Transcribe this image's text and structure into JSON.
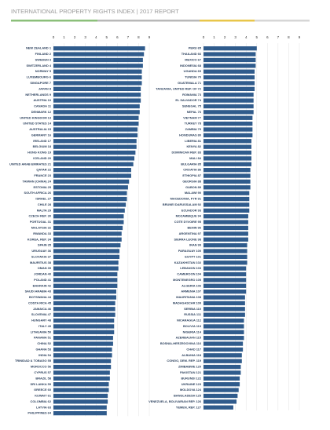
{
  "header": {
    "title": "INTERNATIONAL PROPERTY RIGHTS INDEX | 2017 REPORT"
  },
  "chart_data": [
    {
      "type": "hbar",
      "color": "#2f5b8c",
      "xlim": [
        0,
        9
      ],
      "xticks": [
        0,
        1,
        2,
        3,
        4,
        5,
        6,
        7,
        8,
        9
      ],
      "grid": true,
      "categories": [
        "NEW ZEALAND 1",
        "FINLAND 2",
        "SWEDEN 3",
        "SWITZERLAND 4",
        "NORWAY 5",
        "LUXEMBOURG 6",
        "SINGAPORE 7",
        "JAPAN 8",
        "NETHERLANDS 9",
        "AUSTRIA 10",
        "CANADA 11",
        "DENMARK 12",
        "UNITED KINGDOM 13",
        "UNITED STATES 14",
        "AUSTRALIA 15",
        "GERMANY 16",
        "IRELAND 17",
        "BELGIUM 18",
        "HONG KONG 19",
        "ICELAND 20",
        "UNITED ARAB EMIRATES 21",
        "QATAR 22",
        "FRANCE 23",
        "TAIWAN (CHINA) 24",
        "ESTONIA 25",
        "SOUTH AFRICA 26",
        "ISRAEL 27",
        "CHILE 28",
        "MALTA 29",
        "CZECH REP. 30",
        "PORTUGAL 31",
        "MALAYSIA 32",
        "RWANDA 33",
        "KOREA, REP. 34",
        "SPAIN 35",
        "URUGUAY 36",
        "SLOVAKIA 37",
        "MAURITIUS 38",
        "OMAN 39",
        "JORDAN 40",
        "POLAND 41",
        "BAHRAIN 42",
        "SAUDI ARABIA 43",
        "BOTSWANA 44",
        "COSTA RICA 45",
        "JAMAICA 46",
        "SLOVENIA 47",
        "HUNGARY 48",
        "ITALY 49",
        "LITHUANIA 50",
        "PANAMA 51",
        "CHINA 52",
        "GHANA 53",
        "INDIA 54",
        "TRINIDAD & TOBAGO 55",
        "MOROCCO 56",
        "CYPRUS 57",
        "BRAZIL 58",
        "SRI LANKA 59",
        "GREECE 60",
        "KUWAIT 61",
        "COLOMBIA 62",
        "LATVIA 63",
        "PHILIPPINES 64"
      ],
      "values": [
        8.6,
        8.5,
        8.4,
        8.4,
        8.3,
        8.3,
        8.3,
        8.2,
        8.2,
        8.2,
        8.1,
        8.1,
        8.0,
        8.0,
        7.9,
        7.9,
        7.8,
        7.8,
        7.7,
        7.6,
        7.5,
        7.3,
        7.3,
        7.1,
        7.0,
        6.9,
        6.9,
        6.8,
        6.7,
        6.6,
        6.6,
        6.5,
        6.4,
        6.4,
        6.3,
        6.2,
        6.2,
        6.1,
        6.1,
        6.0,
        6.0,
        6.0,
        5.9,
        5.9,
        5.8,
        5.8,
        5.8,
        5.7,
        5.7,
        5.7,
        5.6,
        5.6,
        5.5,
        5.5,
        5.4,
        5.4,
        5.3,
        5.3,
        5.2,
        5.2,
        5.1,
        5.1,
        5.0,
        5.0
      ]
    },
    {
      "type": "hbar",
      "color": "#2f5b8c",
      "xlim": [
        0,
        9
      ],
      "xticks": [
        0,
        1,
        2,
        3,
        4,
        5,
        6,
        7,
        8,
        9
      ],
      "grid": true,
      "categories": [
        "PERU 65",
        "THAILAND 66",
        "MEXICO 67",
        "INDONESIA 68",
        "UGANDA 69",
        "TUNISIA 70",
        "GUATEMALA 71",
        "TANZANIA, UNITED REP. OF 72",
        "ROMANIA 73",
        "EL SALVADOR 74",
        "SENEGAL 75",
        "NEPAL 76",
        "VIETNAM 77",
        "TURKEY 78",
        "ZAMBIA 79",
        "HONDURAS 80",
        "LIBERIA 81",
        "KENYA 82",
        "DOMINICAN REP. 83",
        "MALI 84",
        "BULGARIA 85",
        "CROATIA 86",
        "ETHIOPIA 87",
        "GEORGIA 88",
        "GABON 89",
        "MALAWI 90",
        "MACEDONIA, FYR 91",
        "BRUNEI DARUSSALAM 92",
        "ECUADOR 93",
        "MOZAMBIQUE 94",
        "COTE D'IVOIRE 95",
        "BENIN 96",
        "ARGENTINA 97",
        "SIERRA LEONE 98",
        "IRAN 99",
        "PARAGUAY 100",
        "EGYPT 101",
        "KAZAKHSTAN 102",
        "LEBANON 103",
        "CAMEROON 104",
        "MONTENEGRO 105",
        "ALGERIA 106",
        "ARMENIA 107",
        "MAURITANIA 108",
        "MADAGASCAR 109",
        "SERBIA 110",
        "RUSSIA 111",
        "NICARAGUA 112",
        "BOLIVIA 113",
        "NIGERIA 114",
        "AZERBAIJAN 115",
        "BOSNIA-HERZEGOVINA 116",
        "CHAD 117",
        "ALBANIA 118",
        "CONGO, DEM. REP. 119",
        "ZIMBABWE 120",
        "PAKISTAN 121",
        "BURUNDI 122",
        "UKRAINE 123",
        "MOLDOVA 124",
        "BANGLADESH 125",
        "VENEZUELA, BOLIVARIAN REP. 126",
        "YEMEN, REP. 127"
      ],
      "values": [
        5.0,
        4.9,
        4.9,
        4.9,
        4.8,
        4.8,
        4.8,
        4.8,
        4.7,
        4.7,
        4.7,
        4.7,
        4.6,
        4.6,
        4.6,
        4.6,
        4.5,
        4.5,
        4.5,
        4.5,
        4.5,
        4.4,
        4.4,
        4.4,
        4.4,
        4.3,
        4.3,
        4.3,
        4.3,
        4.2,
        4.2,
        4.2,
        4.2,
        4.2,
        4.1,
        4.1,
        4.1,
        4.1,
        4.0,
        4.0,
        4.0,
        4.0,
        4.0,
        3.9,
        3.9,
        3.9,
        3.9,
        3.8,
        3.8,
        3.8,
        3.8,
        3.7,
        3.7,
        3.6,
        3.6,
        3.5,
        3.5,
        3.4,
        3.4,
        3.3,
        3.2,
        3.1,
        2.8
      ]
    }
  ]
}
